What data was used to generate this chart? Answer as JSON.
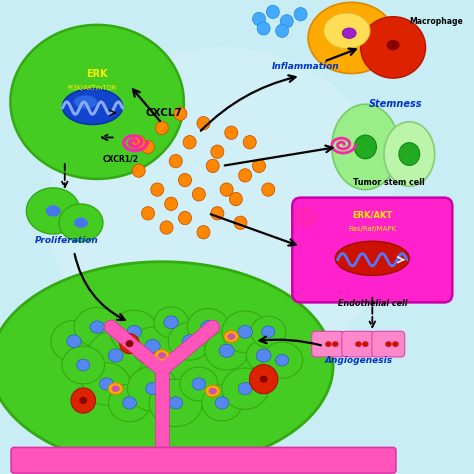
{
  "bg": "#c8edf5",
  "labels": {
    "macrophage": "Macrophage",
    "inflammation": "Inflammation",
    "stemness": "Stemness",
    "tumor_stem_cell": "Tumor stem cell",
    "cxcl7": "CXCL7",
    "cxcr12": "CXCR1/2",
    "proliferation": "Proliferation",
    "endothelial": "Endothelial cell",
    "angiogenesis": "Angiogenesis"
  },
  "colors": {
    "bg": "#c8edf5",
    "green_cell": "#44cc22",
    "green_cell_edge": "#33aa11",
    "blue_nucleus": "#2255dd",
    "blue_nucleus_edge": "#1133bb",
    "pink_receptor": "#ff22aa",
    "orange_dot": "#ff8800",
    "orange_dot_edge": "#dd6600",
    "magenta_box": "#ff22cc",
    "magenta_box_edge": "#cc00aa",
    "red_oval": "#cc1100",
    "wavy_color": "#6688ff",
    "light_green_cell": "#99ee88",
    "light_green_edge": "#66cc55",
    "dark_green_nucleus": "#22bb22",
    "orange_macrophage": "#ffaa00",
    "red_macrophage": "#dd2200",
    "purple_spot": "#aa44cc",
    "yellow_spot": "#ffdd00",
    "blue_dot": "#44aaff",
    "pink_vessel": "#ff55bb",
    "pink_bar": "#ff55bb",
    "tumor_green": "#55cc33",
    "tumor_green_edge": "#33aa11",
    "cell_blue": "#5588ee",
    "arrow_color": "#111111",
    "text_blue": "#0033cc",
    "text_yellow": "#ffee00",
    "text_black": "#000000"
  },
  "orange_dots": [
    [
      3.2,
      6.9
    ],
    [
      3.5,
      7.3
    ],
    [
      3.8,
      6.6
    ],
    [
      4.1,
      7.0
    ],
    [
      4.4,
      7.4
    ],
    [
      4.7,
      6.8
    ],
    [
      5.0,
      7.2
    ],
    [
      3.0,
      6.4
    ],
    [
      3.4,
      6.0
    ],
    [
      3.7,
      5.7
    ],
    [
      4.0,
      6.2
    ],
    [
      4.3,
      5.9
    ],
    [
      4.6,
      6.5
    ],
    [
      4.9,
      6.0
    ],
    [
      3.2,
      5.5
    ],
    [
      3.6,
      5.2
    ],
    [
      4.0,
      5.4
    ],
    [
      4.4,
      5.1
    ],
    [
      4.7,
      5.5
    ],
    [
      5.1,
      5.8
    ],
    [
      5.3,
      6.3
    ],
    [
      5.4,
      7.0
    ],
    [
      5.6,
      6.5
    ],
    [
      5.2,
      5.3
    ],
    [
      3.9,
      7.6
    ],
    [
      3.0,
      7.0
    ],
    [
      5.8,
      6.0
    ]
  ]
}
